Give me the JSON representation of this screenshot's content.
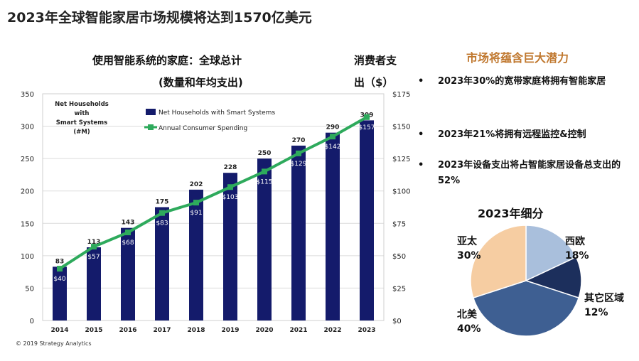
{
  "header": {
    "title": "2023年全球智能家居市场规模将达到1570亿美元"
  },
  "chart_subtitle": {
    "line1": "使用智能系统的家庭：全球总计",
    "line2": "(数量和年均支出)"
  },
  "right_axis_title": {
    "line1": "消费者支",
    "line2": "出（$）"
  },
  "chart_data": [
    {
      "type": "bar+line",
      "title": "使用智能系统的家庭：全球总计 (数量和年均支出)",
      "categories": [
        "2014",
        "2015",
        "2016",
        "2017",
        "2018",
        "2019",
        "2020",
        "2021",
        "2022",
        "2023"
      ],
      "series": [
        {
          "name": "Net Households with Smart Systems",
          "type": "bar",
          "axis": "left",
          "values": [
            83,
            113,
            143,
            175,
            202,
            228,
            250,
            270,
            290,
            309
          ],
          "color": "#141b6b"
        },
        {
          "name": "Annual Consumer Spending",
          "type": "line",
          "axis": "right",
          "values": [
            40,
            57,
            68,
            83,
            91,
            103,
            115,
            129,
            142,
            157
          ],
          "color": "#2eaa5c"
        }
      ],
      "bar_labels": [
        "83",
        "113",
        "143",
        "175",
        "202",
        "228",
        "250",
        "270",
        "290",
        "309"
      ],
      "line_labels": [
        "$40",
        "$57",
        "$68",
        "$83",
        "$91",
        "$103",
        "$115",
        "$129",
        "$142",
        "$157"
      ],
      "ylabel_left": [
        "Net Households",
        "with",
        "Smart Systems",
        "(#M)"
      ],
      "ylim_left": [
        0,
        350
      ],
      "yticks_left": [
        "0",
        "50",
        "100",
        "150",
        "200",
        "250",
        "300",
        "350"
      ],
      "ylim_right": [
        0,
        175
      ],
      "yticks_right": [
        "$0",
        "$25",
        "$50",
        "$75",
        "$100",
        "$125",
        "$150",
        "$175"
      ],
      "legend_position": "top-left",
      "grid": true
    },
    {
      "type": "pie",
      "title": "2023年细分",
      "labels": [
        "西欧",
        "其它区域",
        "北美",
        "亚太"
      ],
      "values": [
        18,
        12,
        40,
        30
      ],
      "value_labels": [
        "18%",
        "12%",
        "40%",
        "30%"
      ],
      "colors": [
        "#a9bfdc",
        "#1c2f5c",
        "#3e5f92",
        "#f6cda2"
      ]
    }
  ],
  "right_panel": {
    "title": "市场将蕴含巨大潜力",
    "bullet_symbol": "•",
    "bullets": [
      "2023年30%的宽带家庭将拥有智能家居",
      "2023年21%将拥有远程监控&控制",
      "2023年设备支出将占智能家居设备总支出的52%"
    ]
  },
  "footer": {
    "copyright": "© 2019 Strategy Analytics"
  }
}
